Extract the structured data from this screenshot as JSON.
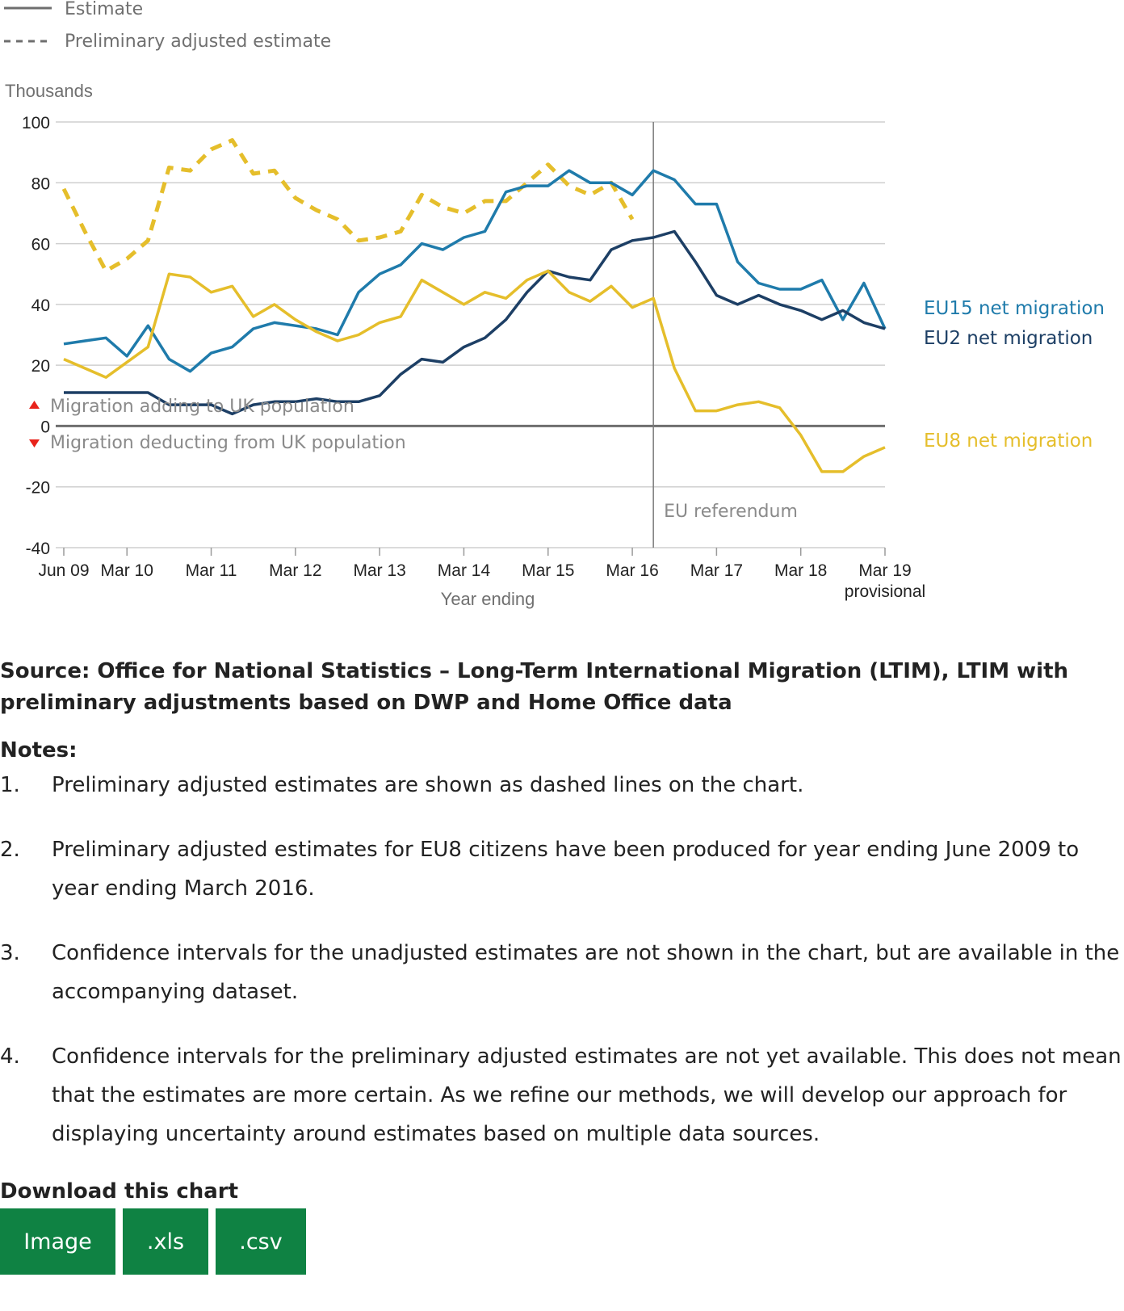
{
  "legend": {
    "estimate_label": "Estimate",
    "preliminary_label": "Preliminary adjusted estimate"
  },
  "annotations": {
    "adding": "Migration adding to UK population",
    "deducting": "Migration deducting from UK population",
    "referendum": "EU referendum"
  },
  "chart_data": {
    "type": "line",
    "ylabel": "Thousands",
    "xlabel": "Year ending",
    "ylim": [
      -40,
      100
    ],
    "yticks": [
      -40,
      -20,
      0,
      20,
      40,
      60,
      80,
      100
    ],
    "x_tick_labels": [
      {
        "i": 0,
        "label": "Jun 09"
      },
      {
        "i": 3,
        "label": "Mar 10"
      },
      {
        "i": 7,
        "label": "Mar 11"
      },
      {
        "i": 11,
        "label": "Mar 12"
      },
      {
        "i": 15,
        "label": "Mar 13"
      },
      {
        "i": 19,
        "label": "Mar 14"
      },
      {
        "i": 23,
        "label": "Mar 15"
      },
      {
        "i": 27,
        "label": "Mar 16"
      },
      {
        "i": 31,
        "label": "Mar 17"
      },
      {
        "i": 35,
        "label": "Mar 18"
      },
      {
        "i": 39,
        "label": "Mar 19",
        "sublabel": "provisional"
      }
    ],
    "x_count": 40,
    "grid": true,
    "referendum_index": 28,
    "series": [
      {
        "name": "EU15 net migration",
        "color": "#1f7bab",
        "style": "solid",
        "values": [
          27,
          28,
          29,
          23,
          33,
          22,
          18,
          24,
          26,
          32,
          34,
          33,
          32,
          30,
          44,
          50,
          53,
          60,
          58,
          62,
          64,
          77,
          79,
          79,
          84,
          80,
          80,
          76,
          84,
          81,
          73,
          73,
          54,
          47,
          45,
          45,
          48,
          35,
          47,
          32
        ]
      },
      {
        "name": "EU2 net migration",
        "color": "#1d3f65",
        "style": "solid",
        "values": [
          11,
          11,
          11,
          11,
          11,
          7,
          7,
          7,
          4,
          7,
          8,
          8,
          9,
          8,
          8,
          10,
          17,
          22,
          21,
          26,
          29,
          35,
          44,
          51,
          49,
          48,
          58,
          61,
          62,
          64,
          54,
          43,
          40,
          43,
          40,
          38,
          35,
          38,
          34,
          32
        ]
      },
      {
        "name": "EU8 net migration",
        "color": "#e5be2b",
        "style": "solid",
        "values": [
          22,
          19,
          16,
          21,
          26,
          50,
          49,
          44,
          46,
          36,
          40,
          35,
          31,
          28,
          30,
          34,
          36,
          48,
          44,
          40,
          44,
          42,
          48,
          51,
          44,
          41,
          46,
          39,
          42,
          19,
          5,
          5,
          7,
          8,
          6,
          -3,
          -15,
          -15,
          -10,
          -7
        ]
      },
      {
        "name": "",
        "color": "#e5be2b",
        "style": "dashed",
        "values": [
          78,
          64,
          51,
          55,
          61,
          85,
          84,
          91,
          94,
          83,
          84,
          75,
          71,
          68,
          61,
          62,
          64,
          76,
          72,
          70,
          74,
          74,
          80,
          86,
          79,
          76,
          80,
          68
        ]
      }
    ]
  },
  "source": "Source: Office for National Statistics – Long-Term International Migration (LTIM), LTIM with preliminary adjustments based on DWP and Home Office data",
  "notes": {
    "title": "Notes:",
    "items": [
      {
        "num": "1.",
        "text": "Preliminary adjusted estimates are shown as dashed lines on the chart."
      },
      {
        "num": "2.",
        "text": "Preliminary adjusted estimates for EU8 citizens have been produced for year ending June 2009 to year ending March 2016."
      },
      {
        "num": "3.",
        "text": "Confidence intervals for the unadjusted estimates are not shown in the chart, but are available in the accompanying dataset."
      },
      {
        "num": "4.",
        "text": "Confidence intervals for the preliminary adjusted estimates are not yet available. This does not mean that the estimates are more certain. As we refine our methods, we will develop our approach for displaying uncertainty around estimates based on multiple data sources."
      }
    ]
  },
  "download": {
    "title": "Download this chart",
    "buttons": [
      "Image",
      ".xls",
      ".csv"
    ]
  }
}
